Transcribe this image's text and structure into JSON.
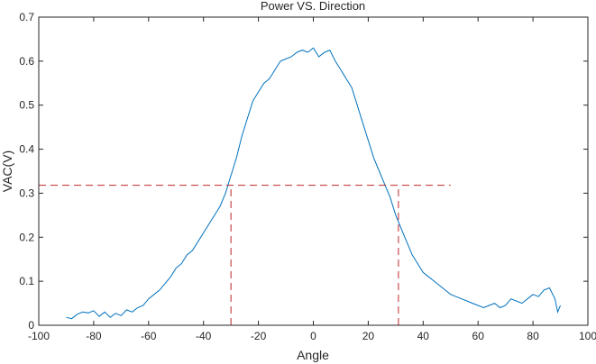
{
  "chart_data": {
    "type": "line",
    "title": "Power VS. Direction",
    "xlabel": "Angle",
    "ylabel": "VAC(V)",
    "xlim": [
      -100,
      100
    ],
    "ylim": [
      0,
      0.7
    ],
    "xticks": [
      "-100",
      "-80",
      "-60",
      "-40",
      "-20",
      "0",
      "20",
      "40",
      "60",
      "80",
      "100"
    ],
    "yticks": [
      "0",
      "0.1",
      "0.2",
      "0.3",
      "0.4",
      "0.5",
      "0.6",
      "0.7"
    ],
    "grid": false,
    "series": [
      {
        "color": "#0072bd",
        "x": [
          -90,
          -88,
          -86,
          -84,
          -82,
          -80,
          -78,
          -76,
          -74,
          -72,
          -70,
          -68,
          -66,
          -64,
          -62,
          -60,
          -58,
          -56,
          -54,
          -52,
          -50,
          -48,
          -46,
          -44,
          -42,
          -40,
          -38,
          -36,
          -34,
          -32,
          -30,
          -28,
          -26,
          -24,
          -22,
          -20,
          -18,
          -16,
          -14,
          -12,
          -10,
          -8,
          -6,
          -4,
          -2,
          0,
          2,
          4,
          6,
          8,
          10,
          12,
          14,
          16,
          18,
          20,
          22,
          24,
          26,
          28,
          30,
          32,
          34,
          36,
          38,
          40,
          42,
          44,
          46,
          48,
          50,
          52,
          54,
          56,
          58,
          60,
          62,
          64,
          66,
          68,
          70,
          72,
          74,
          76,
          78,
          80,
          82,
          84,
          86,
          88,
          89,
          90
        ],
        "y": [
          0.018,
          0.015,
          0.025,
          0.03,
          0.028,
          0.033,
          0.02,
          0.03,
          0.018,
          0.027,
          0.022,
          0.035,
          0.03,
          0.04,
          0.045,
          0.06,
          0.07,
          0.08,
          0.095,
          0.11,
          0.13,
          0.14,
          0.16,
          0.17,
          0.19,
          0.21,
          0.23,
          0.25,
          0.27,
          0.3,
          0.34,
          0.38,
          0.43,
          0.47,
          0.51,
          0.53,
          0.55,
          0.56,
          0.58,
          0.6,
          0.605,
          0.61,
          0.62,
          0.625,
          0.62,
          0.63,
          0.61,
          0.62,
          0.625,
          0.6,
          0.58,
          0.56,
          0.54,
          0.5,
          0.46,
          0.42,
          0.38,
          0.35,
          0.32,
          0.29,
          0.25,
          0.22,
          0.19,
          0.16,
          0.14,
          0.12,
          0.11,
          0.1,
          0.09,
          0.08,
          0.07,
          0.065,
          0.06,
          0.055,
          0.05,
          0.045,
          0.04,
          0.045,
          0.05,
          0.04,
          0.045,
          0.06,
          0.055,
          0.05,
          0.06,
          0.07,
          0.065,
          0.08,
          0.085,
          0.06,
          0.03,
          0.045
        ]
      }
    ],
    "reference_lines": {
      "color": "#c0272d",
      "horizontal": {
        "y": 0.318,
        "x_from": -100,
        "x_to": 50
      },
      "vertical": [
        {
          "x": -30,
          "y_from": 0,
          "y_to": 0.318
        },
        {
          "x": 31,
          "y_from": 0,
          "y_to": 0.318
        }
      ]
    }
  }
}
